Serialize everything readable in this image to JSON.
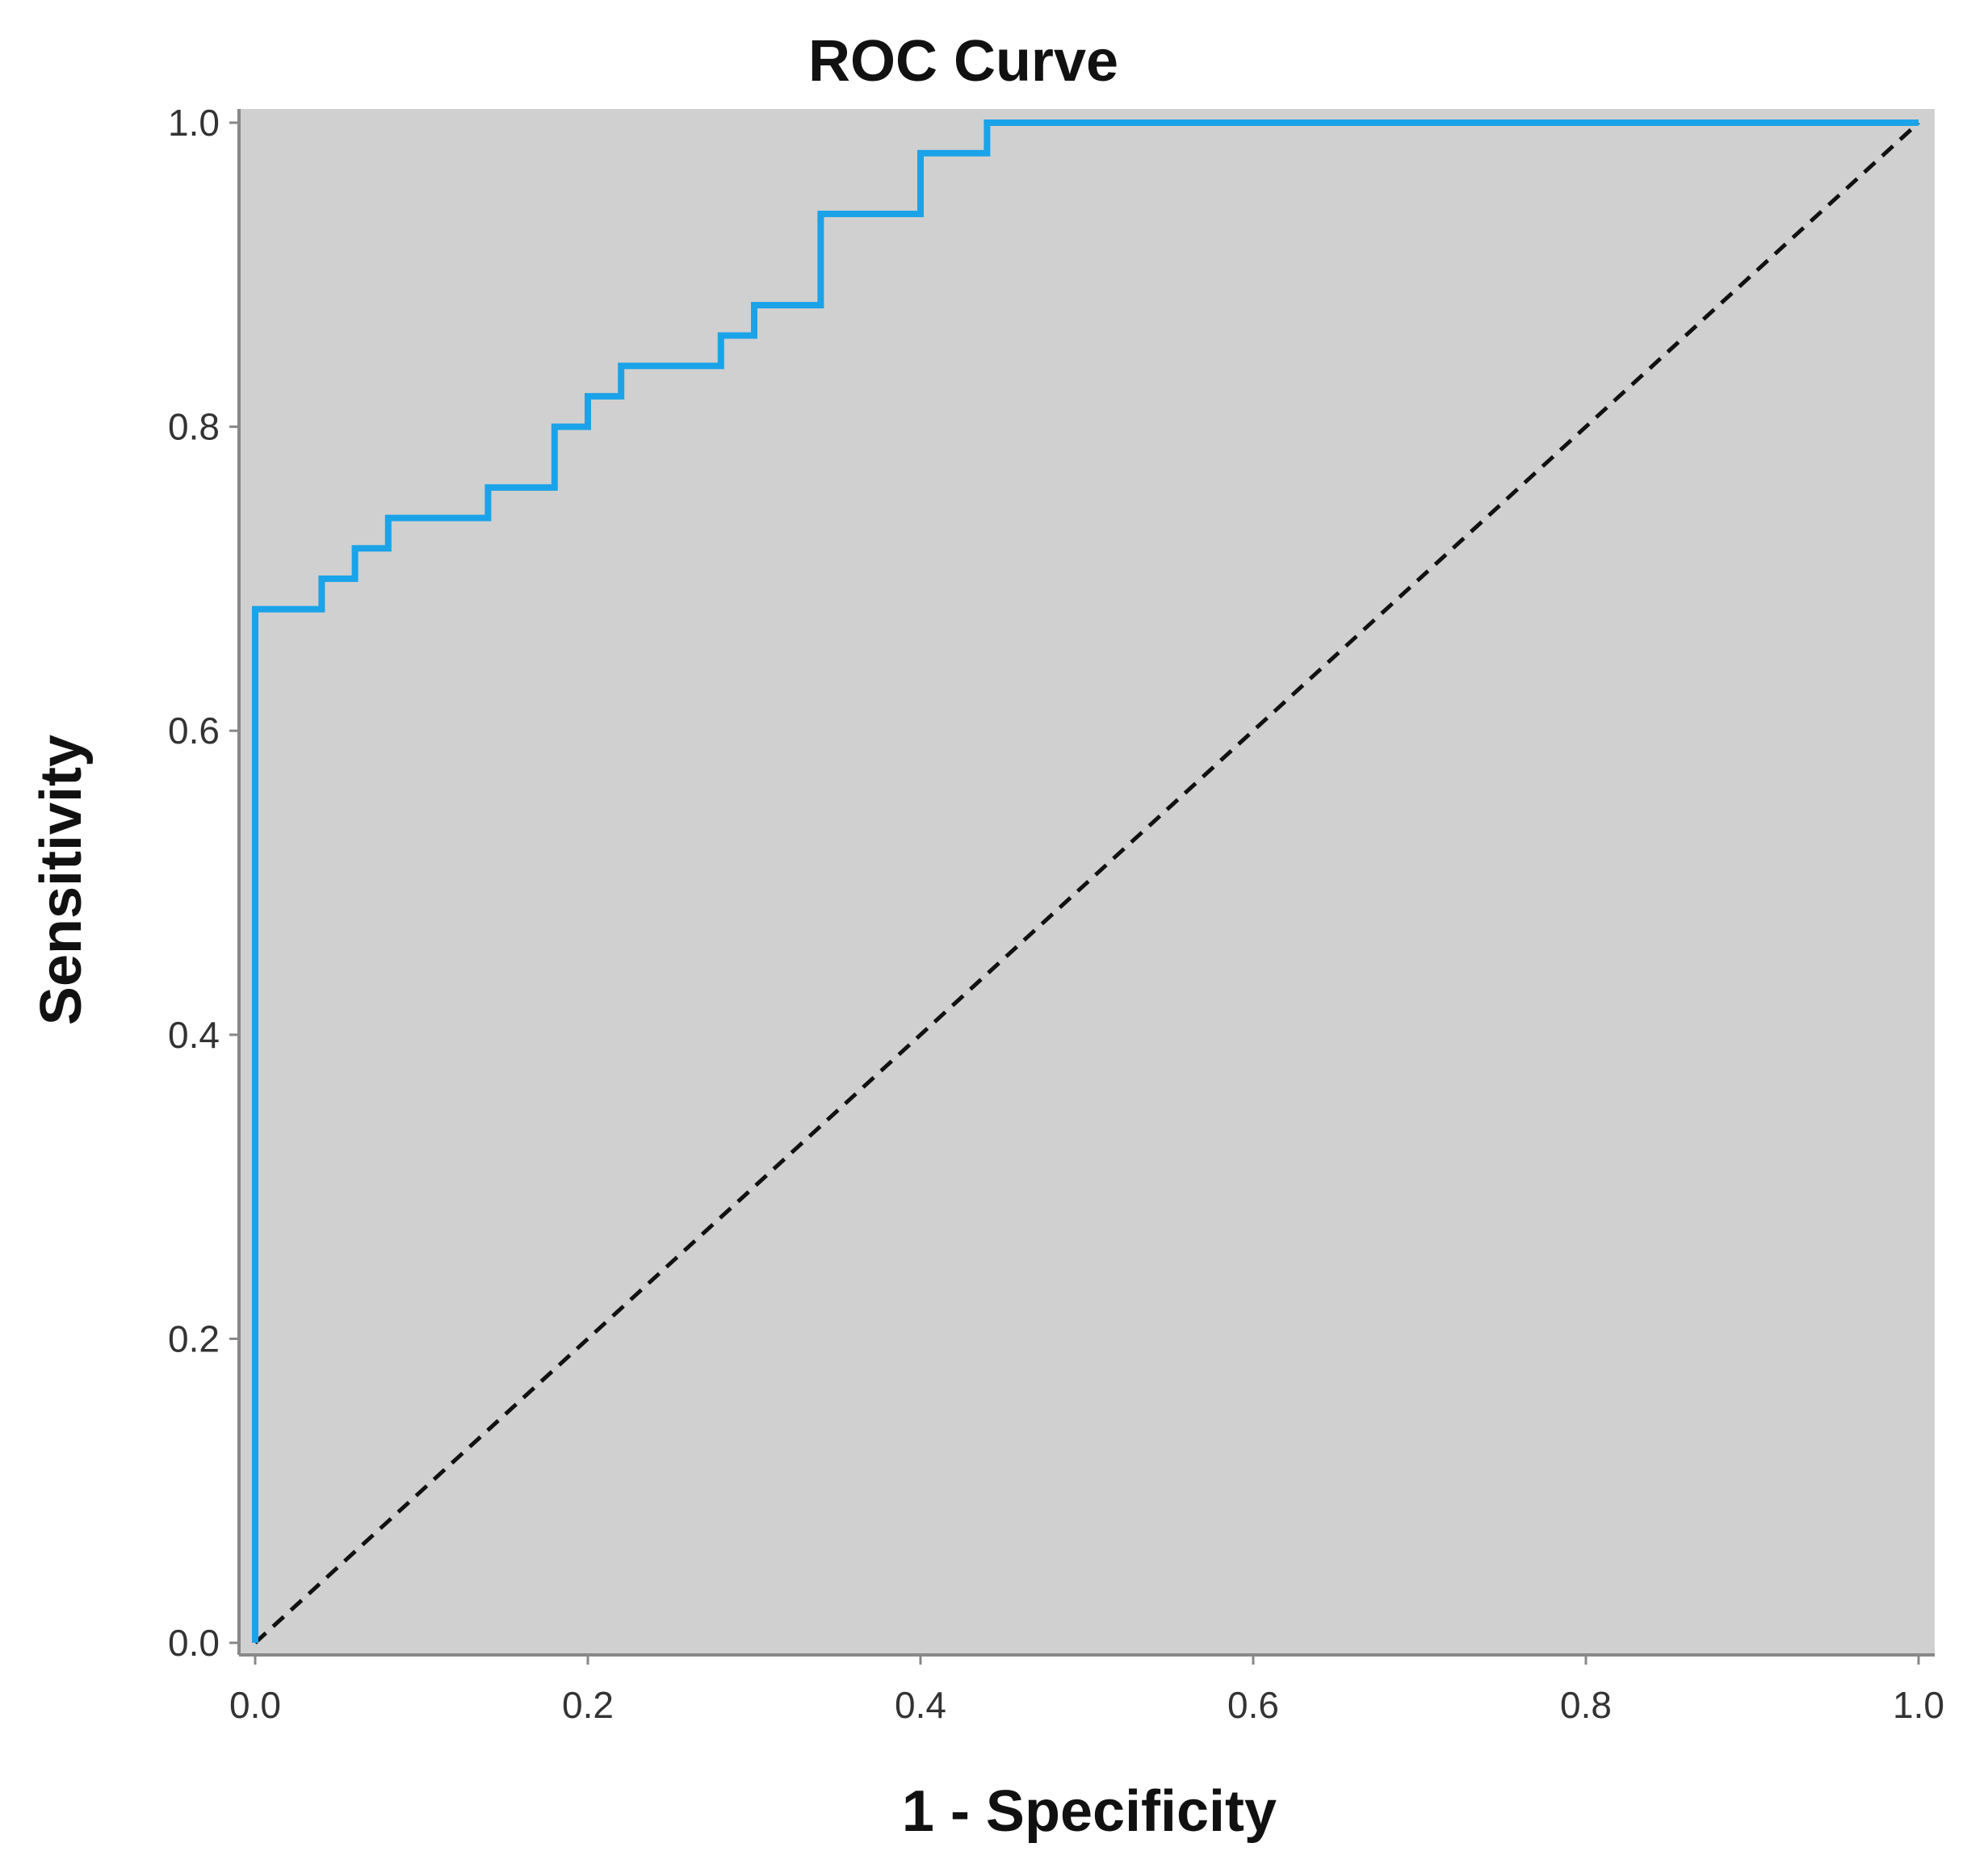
{
  "chart_data": {
    "type": "line",
    "title": "ROC Curve",
    "xlabel": "1 - Specificity",
    "ylabel": "Sensitivity",
    "xlim": [
      0,
      1
    ],
    "ylim": [
      0,
      1
    ],
    "grid": false,
    "background_color": "#d0d0d0",
    "x_ticks": [
      0,
      0.2,
      0.4,
      0.6,
      0.8,
      1.0
    ],
    "y_ticks": [
      0,
      0.2,
      0.4,
      0.6,
      0.8,
      1.0
    ],
    "x_tick_labels": [
      "0.0",
      "0.2",
      "0.4",
      "0.6",
      "0.8",
      "1.0"
    ],
    "y_tick_labels": [
      "0.0",
      "0.2",
      "0.4",
      "0.6",
      "0.8",
      "1.0"
    ],
    "series": [
      {
        "name": "ROC",
        "style": "step",
        "color": "#1aa3e8",
        "x": [
          0.0,
          0.0,
          0.04,
          0.04,
          0.06,
          0.06,
          0.08,
          0.08,
          0.14,
          0.14,
          0.18,
          0.18,
          0.2,
          0.2,
          0.22,
          0.22,
          0.28,
          0.28,
          0.3,
          0.3,
          0.34,
          0.34,
          0.4,
          0.4,
          0.44,
          0.44,
          1.0
        ],
        "y": [
          0.0,
          0.68,
          0.68,
          0.7,
          0.7,
          0.72,
          0.72,
          0.74,
          0.74,
          0.76,
          0.76,
          0.8,
          0.8,
          0.82,
          0.82,
          0.84,
          0.84,
          0.86,
          0.86,
          0.88,
          0.88,
          0.94,
          0.94,
          0.98,
          0.98,
          1.0,
          1.0
        ]
      },
      {
        "name": "Reference line",
        "style": "dashed",
        "color": "#111111",
        "x": [
          0,
          1
        ],
        "y": [
          0,
          1
        ]
      }
    ]
  }
}
